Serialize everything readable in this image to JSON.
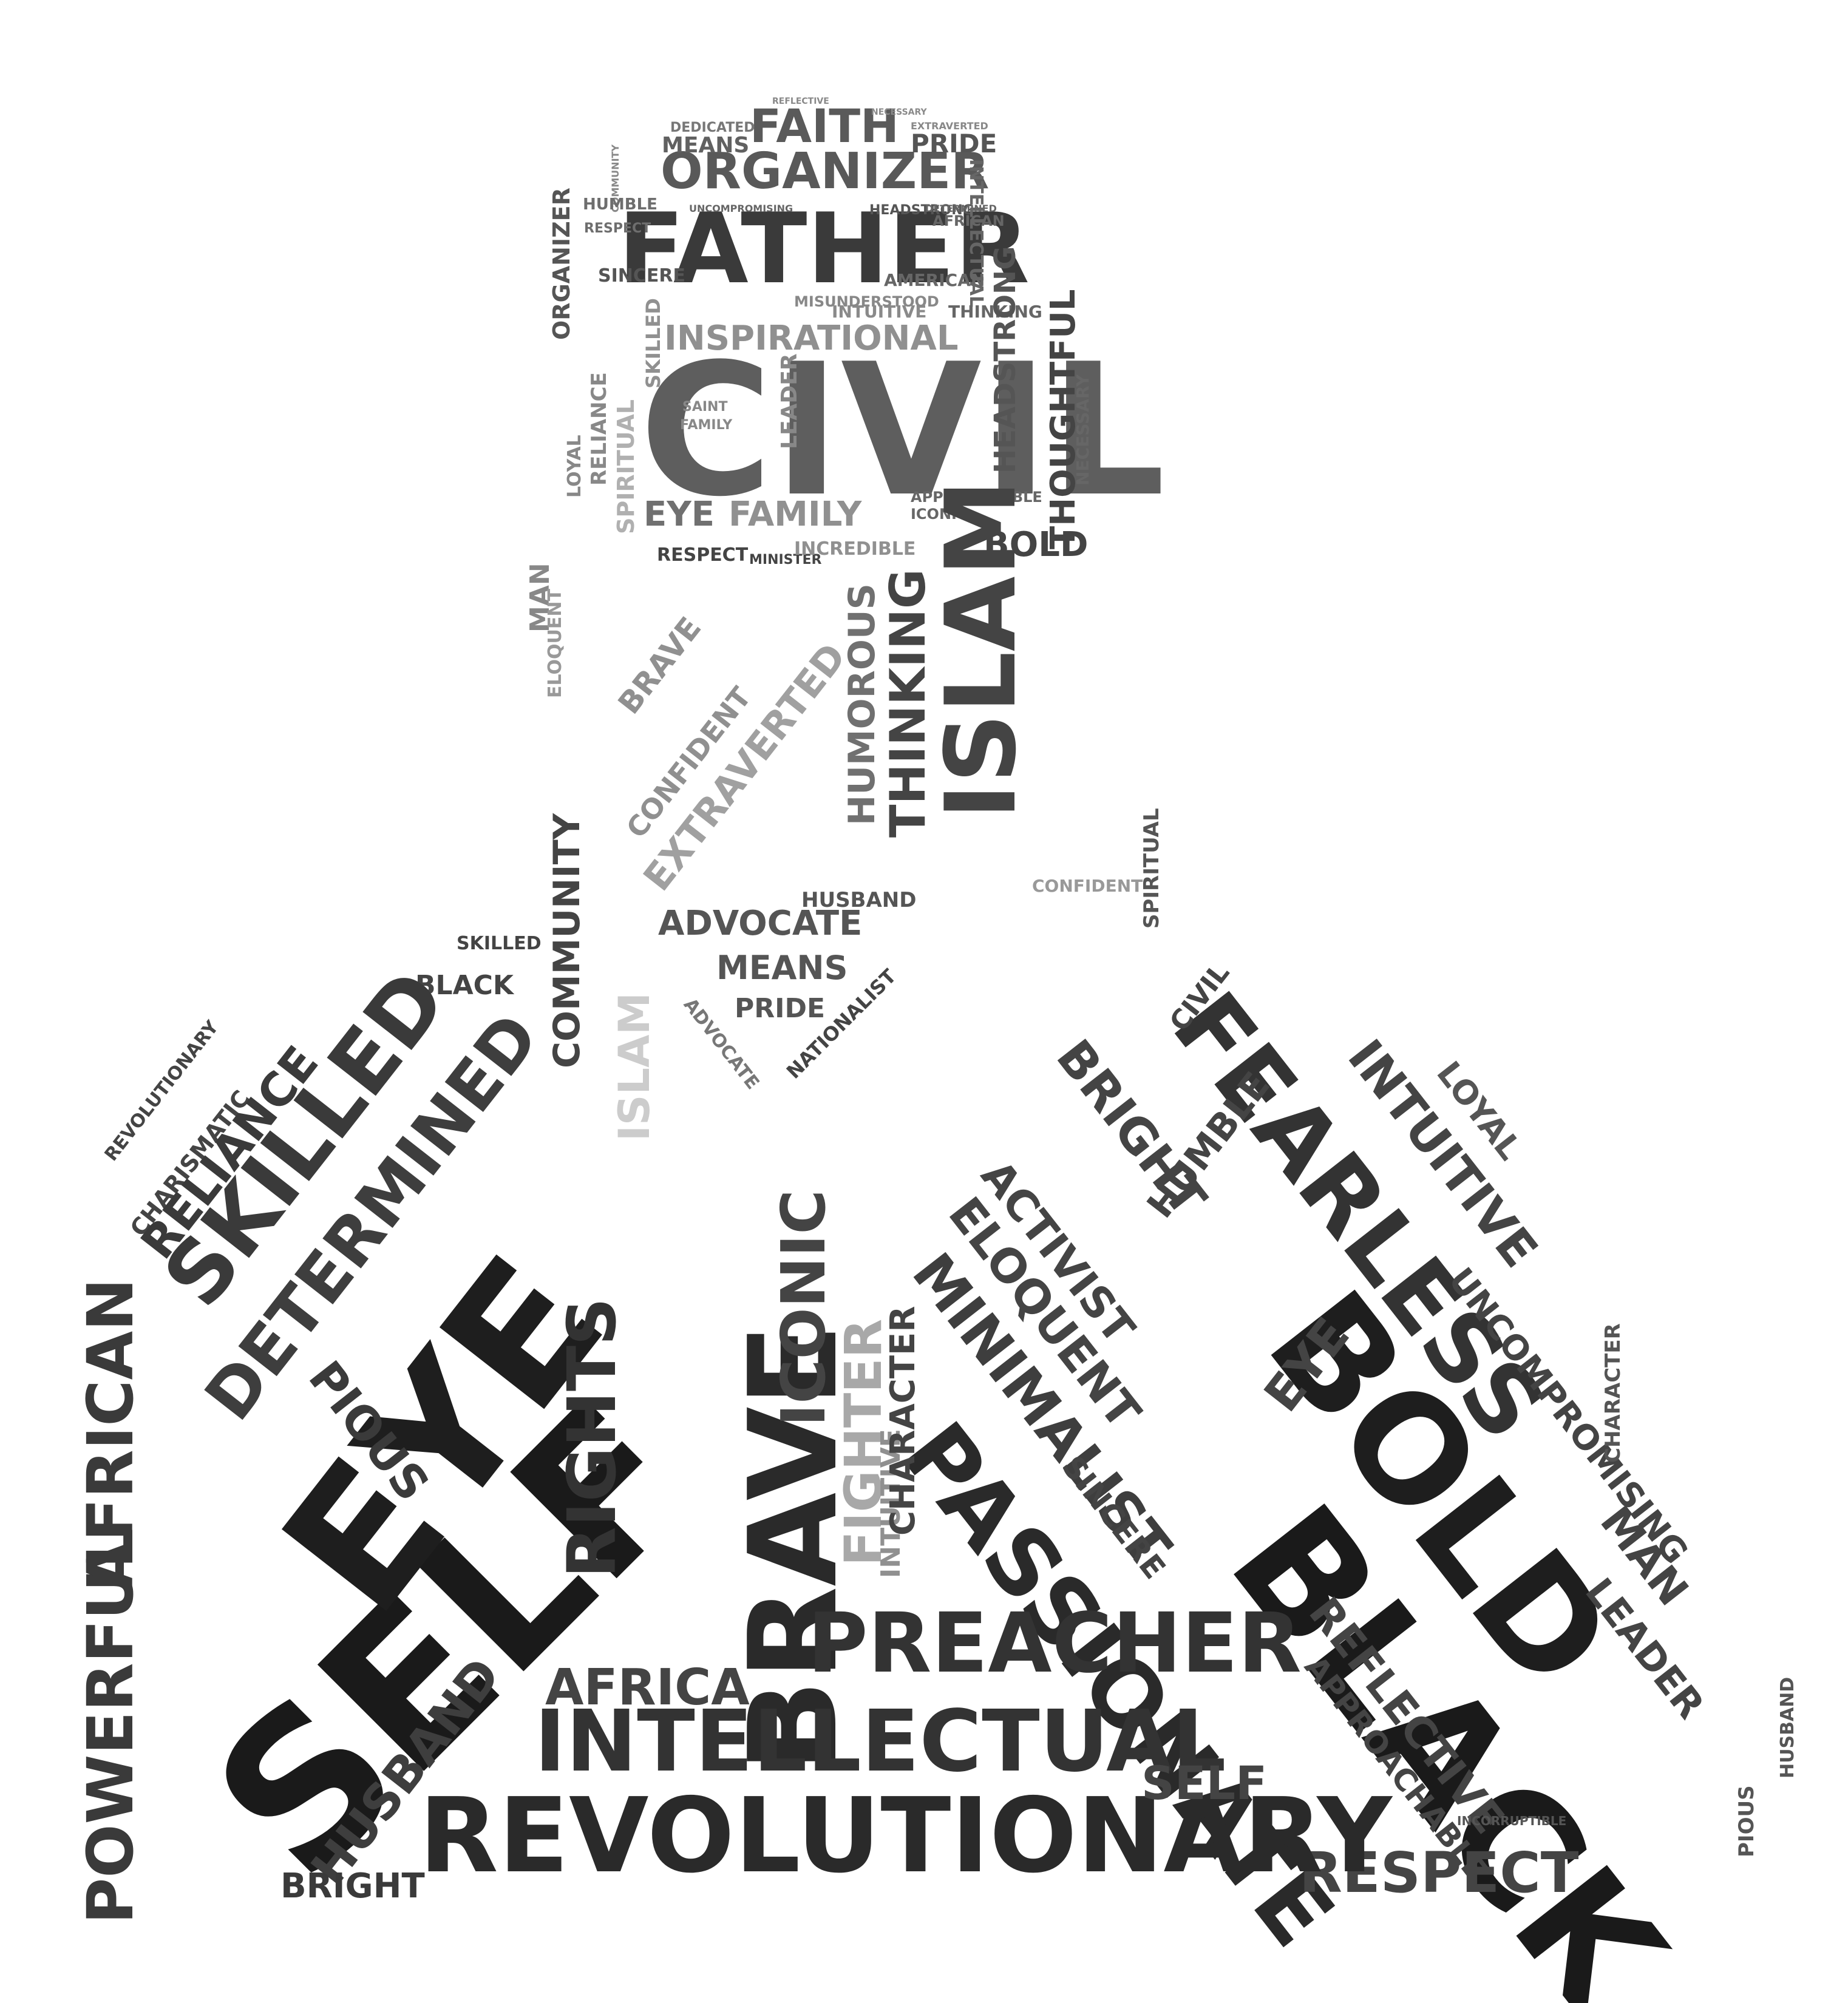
{
  "words": [
    "CIVIL",
    "FATHER",
    "ORGANIZER",
    "FAITH",
    "PRIDE",
    "MEANS",
    "DEDICATED",
    "REFLECTIVE",
    "NECESSARY",
    "EXTRAVERTED",
    "COMMUNITY",
    "HUMBLE",
    "RESPECT",
    "SINCERE",
    "UNCOMPROMISING",
    "HEADSTRONG",
    "DETERMINED",
    "INTELLECTUAL",
    "AFRICAN",
    "AMERICAN",
    "INSPIRATIONAL",
    "THINKING",
    "INTUITIVE",
    "MISUNDERSTOOD",
    "HEADSTRONG",
    "THOUGHTFUL",
    "NECESSARY",
    "SKILLED",
    "SPIRITUAL",
    "RELIANCE",
    "LOYAL",
    "SAINT",
    "FAMILY",
    "LEADER",
    "EYE",
    "FAMILY",
    "APPROACHABLE",
    "ICONIC",
    "BOLD",
    "RESPECT",
    "MINISTER",
    "INCREDIBLE",
    "ISLAM",
    "THINKING",
    "HUMOROUS",
    "EXTRAVERTED",
    "CONFIDENT",
    "BRAVE",
    "MAN",
    "ELOQUENT",
    "ADVOCATE",
    "MEANS",
    "PRIDE",
    "BLACK",
    "SKILLED",
    "DETERMINED",
    "SELF",
    "EYE",
    "BRAVE",
    "ICONIC",
    "FIGHTER",
    "INTUITIVE",
    "FEARLESS",
    "BOLD",
    "BLACK",
    "PASSIONATE",
    "MINIMALIST",
    "ELOQUENT",
    "ACTIVIST",
    "BRIGHT",
    "INTUITIVE",
    "LOYAL",
    "UNCOMPROMISING",
    "CHARACTER",
    "MAN",
    "LEADER",
    "HUSBAND",
    "PIOUS",
    "REFLECTIVE",
    "APPROACHABLE",
    "RESPECT",
    "REVOLUTIONARY",
    "INTELLECTUAL",
    "PREACHER",
    "AFRICA",
    "RIGHTS",
    "HUSBAND",
    "POWERFUL",
    "AFRICAN",
    "REVOLUTIONARY",
    "CHARISMATIC",
    "RELIANCE",
    "SKILLED",
    "ISLAM",
    "ADVOCATE",
    "HUSBAND",
    "CIVIL",
    "SINCERE",
    "HUMBLE",
    "COMMUNITY",
    "NATIONALIST",
    "INCORRUPTIBLE",
    "CONFIDENT",
    "SPIRITUAL",
    "CHARACTER",
    "ORGANIZER",
    "PIOUS",
    "EYE",
    "SELF",
    "BRIGHT"
  ]
}
